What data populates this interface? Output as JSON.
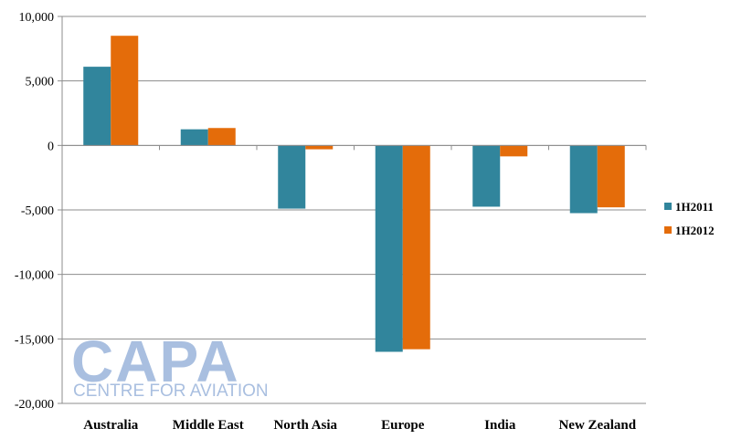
{
  "chart_data": {
    "type": "bar",
    "categories": [
      "Australia",
      "Middle East",
      "North Asia",
      "Europe",
      "India",
      "New Zealand"
    ],
    "series": [
      {
        "name": "1H2011",
        "color": "#31859c",
        "values": [
          6100,
          1250,
          -4900,
          -16000,
          -4750,
          -5250
        ]
      },
      {
        "name": "1H2012",
        "color": "#e46c0a",
        "values": [
          8500,
          1350,
          -300,
          -15800,
          -850,
          -4800
        ]
      }
    ],
    "ylim": [
      -20000,
      10000
    ],
    "yticks": [
      {
        "value": 10000,
        "label": "10,000"
      },
      {
        "value": 5000,
        "label": "5,000"
      },
      {
        "value": 0,
        "label": "0"
      },
      {
        "value": -5000,
        "label": "-5,000"
      },
      {
        "value": -10000,
        "label": "-10,000"
      },
      {
        "value": -15000,
        "label": "-15,000"
      },
      {
        "value": -20000,
        "label": "-20,000"
      }
    ],
    "grid": true,
    "legend": "right"
  },
  "watermark": {
    "logo_text": "CAPA",
    "tagline": "CENTRE FOR AVIATION",
    "color": "#a9bfe0"
  }
}
